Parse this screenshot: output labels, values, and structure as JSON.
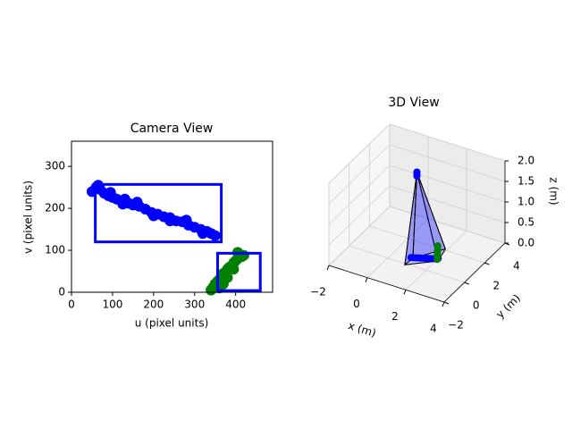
{
  "chart_data": [
    {
      "type": "scatter",
      "title": "Camera View",
      "x_label": "u (pixel units)",
      "y_label": "v (pixel units)",
      "xlim": [
        0,
        490
      ],
      "ylim": [
        0,
        360
      ],
      "xticks": [
        0,
        100,
        200,
        300,
        400
      ],
      "yticks": [
        0,
        100,
        200,
        300
      ],
      "series": [
        {
          "color": "#0000ff",
          "x": [
            50,
            60,
            70,
            80,
            90,
            100,
            110,
            120,
            130,
            140,
            150,
            165,
            180,
            195,
            210,
            225,
            240,
            255,
            270,
            285,
            300,
            315,
            330,
            340,
            350,
            65,
            95,
            125,
            160,
            200,
            240,
            280,
            320
          ],
          "values": [
            240,
            250,
            245,
            236,
            230,
            226,
            222,
            218,
            222,
            212,
            208,
            205,
            198,
            190,
            186,
            180,
            178,
            170,
            168,
            160,
            155,
            150,
            145,
            140,
            135,
            255,
            238,
            210,
            215,
            182,
            170,
            172,
            140
          ]
        },
        {
          "color": "#008000",
          "x": [
            340,
            345,
            350,
            355,
            360,
            365,
            370,
            375,
            380,
            385,
            390,
            395,
            400,
            405,
            410,
            415,
            420,
            360,
            370,
            380,
            395,
            405
          ],
          "values": [
            5,
            12,
            20,
            25,
            30,
            35,
            45,
            40,
            55,
            60,
            62,
            70,
            75,
            80,
            90,
            85,
            88,
            10,
            20,
            35,
            55,
            95
          ]
        }
      ],
      "boxes": [
        {
          "color": "#0000ff",
          "x": [
            58,
            365
          ],
          "y": [
            120,
            257
          ]
        },
        {
          "color": "#0000ff",
          "x": [
            356,
            460
          ],
          "y": [
            4,
            93
          ]
        }
      ]
    },
    {
      "type": "scatter3d",
      "title": "3D View",
      "x_label": "x (m)",
      "y_label": "y (m)",
      "z_label": "z (m)",
      "xlim": [
        -2,
        4
      ],
      "ylim": [
        -2,
        4
      ],
      "zlim": [
        0,
        2
      ],
      "xticks": [
        {
          "value": -2,
          "label": "−2"
        },
        0,
        2,
        4
      ],
      "yticks": [
        {
          "value": -2,
          "label": "−2"
        },
        0,
        2,
        4
      ],
      "zticks": [
        {
          "value": 0,
          "label": "0.0"
        },
        0.5,
        {
          "value": 1,
          "label": "1.0"
        },
        1.5,
        {
          "value": 2,
          "label": "2.0"
        }
      ],
      "frustum": {
        "color": "#0000ff",
        "apex": [
          1,
          1,
          2
        ],
        "corners": [
          [
            0.95,
            -0.1,
            0
          ],
          [
            2.1,
            1.0,
            0
          ],
          [
            1.9,
            2.1,
            0
          ],
          [
            1.0,
            0.6,
            0
          ]
        ]
      },
      "series": [
        {
          "color": "#0000ff",
          "x": [
            1,
            1,
            1,
            0.9,
            1.0,
            1.1,
            1.2,
            1.3,
            1.4,
            1.5,
            1.6,
            1.7,
            1.8,
            1.9,
            2.0
          ],
          "y": [
            1,
            1,
            1,
            0.6,
            0.65,
            0.7,
            0.75,
            0.8,
            0.85,
            0.9,
            0.95,
            1.0,
            1.05,
            1.1,
            1.2
          ],
          "values": [
            2,
            1.95,
            1.9,
            0,
            0,
            0,
            0,
            0,
            0,
            0,
            0,
            0,
            0,
            0,
            0
          ]
        },
        {
          "color": "#008000",
          "x": [
            1.5,
            1.6,
            1.7,
            1.8,
            1.9,
            2.0,
            1.55,
            1.75
          ],
          "y": [
            2.1,
            1.9,
            1.7,
            1.5,
            1.3,
            1.1,
            2.0,
            1.6
          ],
          "values": [
            0,
            0,
            0,
            0,
            0,
            0,
            0.05,
            0.05
          ]
        }
      ]
    }
  ]
}
